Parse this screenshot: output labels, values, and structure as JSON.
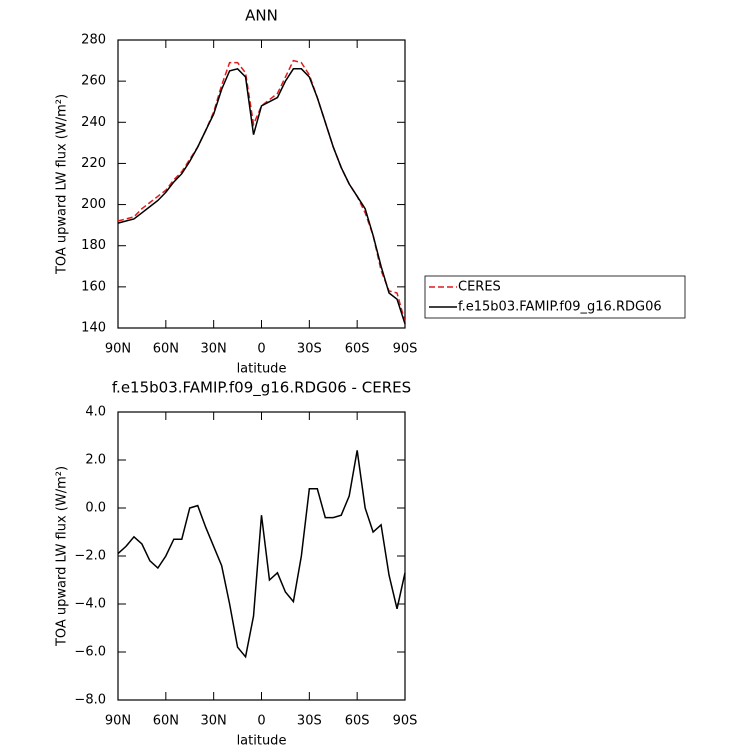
{
  "chart_data": [
    {
      "type": "line",
      "title": "ANN",
      "x_label": "latitude",
      "y_label": "TOA upward LW flux (W/m²)",
      "x": [
        90,
        85,
        80,
        75,
        70,
        65,
        60,
        55,
        50,
        45,
        40,
        35,
        30,
        25,
        20,
        15,
        10,
        5,
        0,
        -5,
        -10,
        -15,
        -20,
        -25,
        -30,
        -35,
        -40,
        -45,
        -50,
        -55,
        -60,
        -65,
        -70,
        -75,
        -80,
        -85,
        -90
      ],
      "xlim": [
        90,
        -90
      ],
      "xticks": [
        {
          "value": 90,
          "label": "90N"
        },
        {
          "value": 60,
          "label": "60N"
        },
        {
          "value": 30,
          "label": "30N"
        },
        0,
        {
          "value": -30,
          "label": "30S"
        },
        {
          "value": -60,
          "label": "60S"
        },
        {
          "value": -90,
          "label": "90S"
        }
      ],
      "ylim": [
        140,
        280
      ],
      "yticks": [
        140,
        160,
        180,
        200,
        220,
        240,
        260,
        280
      ],
      "legend": "right",
      "series": [
        {
          "name": "CERES",
          "color": "#e41a1c",
          "dash": true,
          "values": [
            192,
            193,
            194,
            198,
            201,
            204,
            207,
            212,
            216,
            222,
            228,
            236,
            245,
            258,
            269,
            269,
            264,
            239,
            248,
            251,
            254,
            262,
            270,
            269,
            263,
            252,
            240,
            228,
            218,
            210,
            204,
            196,
            185,
            168,
            158,
            157,
            143
          ]
        },
        {
          "name": "f.e15b03.FAMIP.f09_g16.RDG06",
          "color": "#000000",
          "dash": false,
          "values": [
            191,
            192,
            193,
            196,
            199,
            202,
            206,
            211,
            215,
            221,
            228,
            236,
            244,
            256,
            265,
            266,
            262,
            234,
            248,
            250,
            252,
            260,
            266,
            266,
            262,
            252,
            240,
            228,
            218,
            210,
            204,
            198,
            185,
            170,
            157,
            154,
            142
          ]
        }
      ]
    },
    {
      "type": "line",
      "title": "f.e15b03.FAMIP.f09_g16.RDG06 - CERES",
      "x_label": "latitude",
      "y_label": "TOA upward LW flux (W/m²)",
      "x": [
        90,
        85,
        80,
        75,
        70,
        65,
        60,
        55,
        50,
        45,
        40,
        35,
        30,
        25,
        20,
        15,
        10,
        5,
        0,
        -5,
        -10,
        -15,
        -20,
        -25,
        -30,
        -35,
        -40,
        -45,
        -50,
        -55,
        -60,
        -65,
        -70,
        -75,
        -80,
        -85,
        -90
      ],
      "xlim": [
        90,
        -90
      ],
      "xticks": [
        {
          "value": 90,
          "label": "90N"
        },
        {
          "value": 60,
          "label": "60N"
        },
        {
          "value": 30,
          "label": "30N"
        },
        0,
        {
          "value": -30,
          "label": "30S"
        },
        {
          "value": -60,
          "label": "60S"
        },
        {
          "value": -90,
          "label": "90S"
        }
      ],
      "ylim": [
        -8,
        4
      ],
      "yticks": [
        {
          "value": -8,
          "label": "−8.0"
        },
        {
          "value": -6,
          "label": "−6.0"
        },
        {
          "value": -4,
          "label": "−4.0"
        },
        {
          "value": -2,
          "label": "−2.0"
        },
        {
          "value": 0,
          "label": "0.0"
        },
        {
          "value": 2,
          "label": "2.0"
        },
        {
          "value": 4,
          "label": "4.0"
        }
      ],
      "series": [
        {
          "color": "#000000",
          "dash": false,
          "values": [
            -1.9,
            -1.6,
            -1.2,
            -1.5,
            -2.2,
            -2.5,
            -2.0,
            -1.3,
            -1.3,
            0.0,
            0.1,
            -0.8,
            -1.6,
            -2.4,
            -4.0,
            -5.8,
            -6.2,
            -4.5,
            -0.3,
            -3.0,
            -2.7,
            -3.5,
            -3.9,
            -2.0,
            0.8,
            0.8,
            -0.4,
            -0.4,
            -0.3,
            0.5,
            2.4,
            0.0,
            -1.0,
            -0.7,
            -2.8,
            -4.2,
            -2.7
          ]
        }
      ]
    }
  ]
}
